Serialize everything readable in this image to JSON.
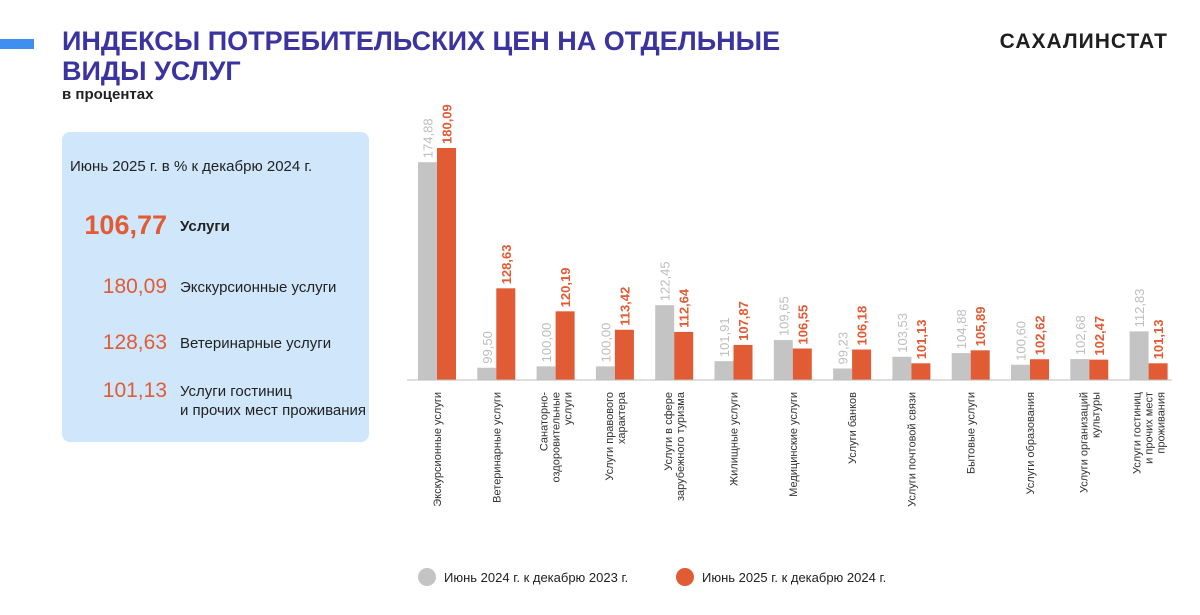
{
  "header": {
    "title": "ИНДЕКСЫ ПОТРЕБИТЕЛЬСКИХ ЦЕН НА ОТДЕЛЬНЫЕ ВИДЫ УСЛУГ",
    "subtitle": "в процентах",
    "org": "САХАЛИНСТАТ"
  },
  "panel": {
    "heading": "Июнь 2025 г. в % к декабрю 2024 г.",
    "main": {
      "value": "106,77",
      "label": "Услуги"
    },
    "items": [
      {
        "value": "180,09",
        "label": "Экскурсионные услуги"
      },
      {
        "value": "128,63",
        "label": "Ветеринарные услуги"
      },
      {
        "value": "101,13",
        "label_line1": "Услуги гостиниц",
        "label_line2": "и прочих мест проживания"
      }
    ]
  },
  "chart_data": {
    "type": "bar",
    "categories": [
      [
        "Экскурсионные услуги"
      ],
      [
        "Ветеринарные услуги"
      ],
      [
        "Санаторно-",
        "оздоровительные",
        "услуги"
      ],
      [
        "Услуги правового",
        "характера"
      ],
      [
        "Услуги в сфере",
        "зарубежного туризма"
      ],
      [
        "Жилищные услуги"
      ],
      [
        "Медицинские услуги"
      ],
      [
        "Услуги банков"
      ],
      [
        "Услуги почтовой связи"
      ],
      [
        "Бытовые услуги"
      ],
      [
        "Услуги образования"
      ],
      [
        "Услуги организаций",
        "культуры"
      ],
      [
        "Услуги гостиниц",
        "и прочих мест",
        "проживания"
      ]
    ],
    "series": [
      {
        "name": "Июнь 2024 г. к декабрю 2023 г.",
        "color": "#c4c4c4",
        "label_color": "#bdbdbd",
        "values": [
          174.88,
          99.5,
          100.0,
          100.0,
          122.45,
          101.91,
          109.65,
          99.23,
          103.53,
          104.88,
          100.6,
          102.68,
          112.83
        ],
        "labels": [
          "174,88",
          "99,50",
          "100,00",
          "100,00",
          "122,45",
          "101,91",
          "109,65",
          "99,23",
          "103,53",
          "104,88",
          "100,60",
          "102,68",
          "112,83"
        ]
      },
      {
        "name": "Июнь 2025 г. к декабрю 2024 г.",
        "color": "#e15b35",
        "label_color": "#e15b35",
        "values": [
          180.09,
          128.63,
          120.19,
          113.42,
          112.64,
          107.87,
          106.55,
          106.18,
          101.13,
          105.89,
          102.62,
          102.47,
          101.13
        ],
        "labels": [
          "180,09",
          "128,63",
          "120,19",
          "113,42",
          "112,64",
          "107,87",
          "106,55",
          "106,18",
          "101,13",
          "105,89",
          "102,62",
          "102,47",
          "101,13"
        ]
      }
    ],
    "ylim": [
      95,
      185
    ],
    "legend_position": "bottom",
    "grid": false
  },
  "legend": {
    "item1": "Июнь 2024 г. к декабрю 2023 г.",
    "item2": "Июнь 2025 г. к декабрю 2024 г."
  }
}
